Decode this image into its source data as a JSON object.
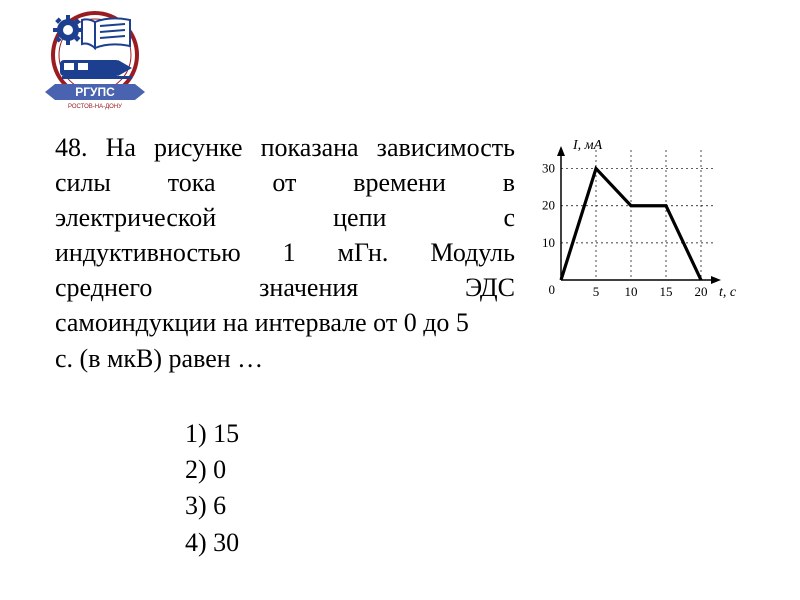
{
  "logo": {
    "outer_ring_color": "#9b1c20",
    "banner_text": "РГУПС",
    "banner_bg": "#4a63b0",
    "gear_color": "#1d3f8f",
    "book_color": "#1d3f8f",
    "train_color": "#1d3f8f"
  },
  "question": {
    "number": "48.",
    "line1_a": "48.",
    "line1_b": "На",
    "line1_c": "рисунке",
    "line1_d": "показана",
    "line1_e": "зависимость",
    "line2_a": "силы",
    "line2_b": "тока",
    "line2_c": "от",
    "line2_d": "времени",
    "line2_e": "в",
    "line3_a": "электрической",
    "line3_b": "цепи",
    "line3_c": "с",
    "line4_a": "индуктивностью",
    "line4_b": "1",
    "line4_c": "мГн.",
    "line4_d": "Модуль",
    "line5_a": "среднего",
    "line5_b": "значения",
    "line5_c": "ЭДС",
    "line6": "самоиндукции на интервале от 0 до 5",
    "line7": "с. (в мкВ) равен …"
  },
  "answers": {
    "a1": "1) 15",
    "a2": "2) 0",
    "a3": "3) 6",
    "a4": "4) 30"
  },
  "chart": {
    "type": "line",
    "x_label": "t, с",
    "y_label": "I, мА",
    "xlim": [
      0,
      22
    ],
    "ylim": [
      0,
      35
    ],
    "xticks": [
      5,
      10,
      15,
      20
    ],
    "yticks": [
      10,
      20,
      30
    ],
    "points": [
      {
        "x": 0,
        "y": 0
      },
      {
        "x": 5,
        "y": 30
      },
      {
        "x": 10,
        "y": 20
      },
      {
        "x": 15,
        "y": 20
      },
      {
        "x": 20,
        "y": 0
      }
    ],
    "axis_color": "#000000",
    "grid_color": "#000000",
    "grid_dash": "2,3",
    "line_color": "#000000",
    "line_width": 3.2,
    "tick_fontsize": 13,
    "label_fontsize": 14,
    "background_color": "#ffffff",
    "show_grid": true
  }
}
